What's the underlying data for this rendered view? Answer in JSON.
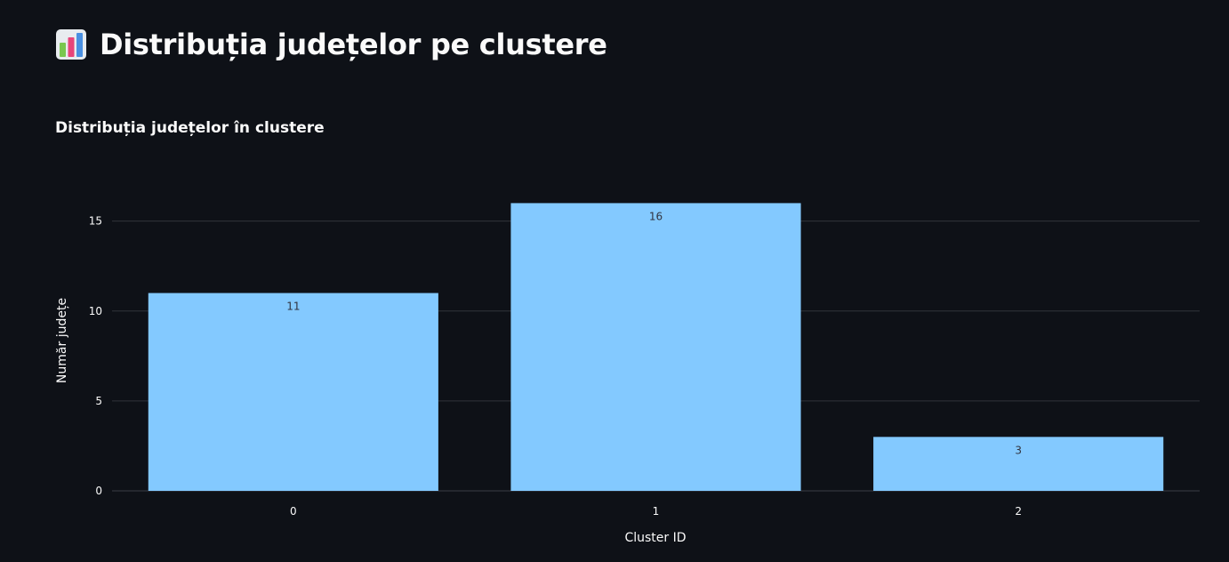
{
  "header": {
    "icon": "bar-chart-icon",
    "title": "Distribuția județelor pe clustere"
  },
  "chart_data": {
    "type": "bar",
    "title": "Distribuția județelor în clustere",
    "categories": [
      "0",
      "1",
      "2"
    ],
    "values": [
      11,
      16,
      3
    ],
    "xlabel": "Cluster ID",
    "ylabel": "Număr județe",
    "ylim": [
      0,
      17.9
    ],
    "yticks": [
      0,
      5,
      10,
      15
    ],
    "grid": true,
    "bar_color": "#83c9ff",
    "data_labels": [
      "11",
      "16",
      "3"
    ]
  }
}
